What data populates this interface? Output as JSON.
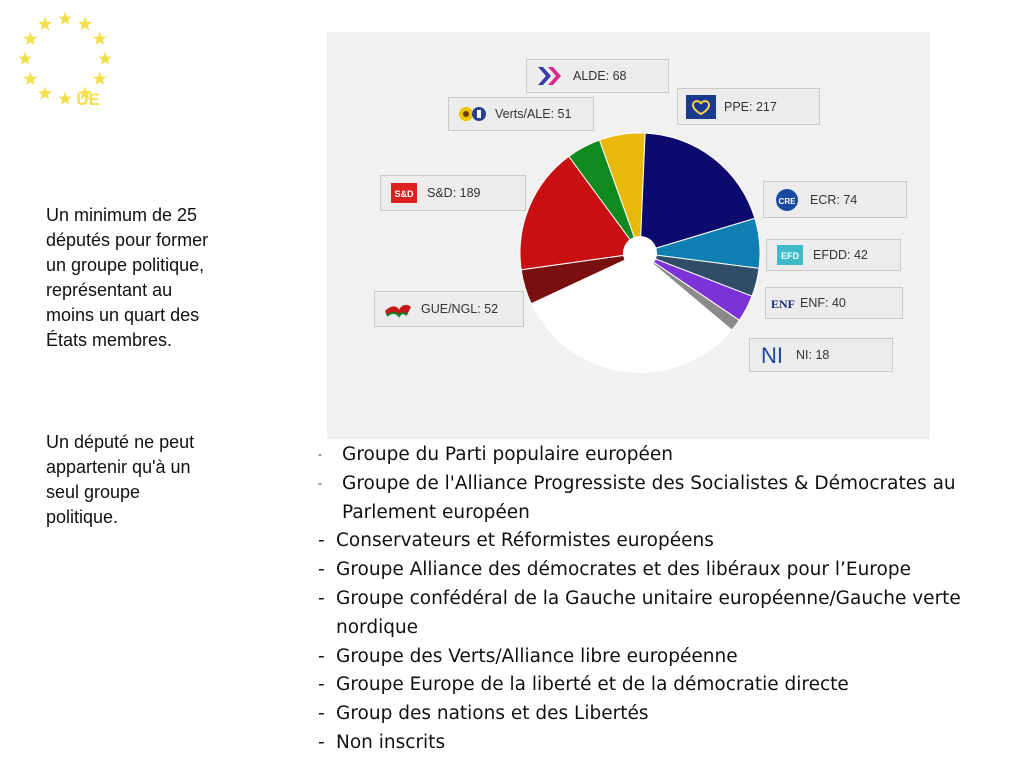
{
  "logo": {
    "text": "UE",
    "star_color": "#f3e04a"
  },
  "side_text": {
    "paragraph_1": "Un minimum de 25 députés pour former un groupe politique, représentant au moins un quart des États membres.",
    "paragraph_2": "Un député ne peut appartenir qu'à un seul groupe politique."
  },
  "chart_data": {
    "type": "pie",
    "variant": "hemicycle",
    "title": "",
    "start_angle_deg": 245,
    "series": [
      {
        "label": "GUE/NGL: 52",
        "value": 52,
        "color": "#7a0f10"
      },
      {
        "label": "S&D: 189",
        "value": 189,
        "color": "#c80f12"
      },
      {
        "label": "Verts/ALE: 51",
        "value": 51,
        "color": "#0f8a1f"
      },
      {
        "label": "ALDE: 68",
        "value": 68,
        "color": "#e8b80a"
      },
      {
        "label": "PPE: 217",
        "value": 217,
        "color": "#0c0a6c"
      },
      {
        "label": "ECR: 74",
        "value": 74,
        "color": "#0e7fb0"
      },
      {
        "label": "EFDD: 42",
        "value": 42,
        "color": "#2f4d66"
      },
      {
        "label": "ENF: 40",
        "value": 40,
        "color": "#7b32d6"
      },
      {
        "label": "NI: 18",
        "value": 18,
        "color": "#8a8a8a"
      }
    ]
  },
  "legend_labels": {
    "alde": "ALDE: 68",
    "verts": "Verts/ALE: 51",
    "ppe": "PPE: 217",
    "sd": "S&D: 189",
    "ecr": "ECR: 74",
    "efdd": "EFDD: 42",
    "gue": "GUE/NGL: 52",
    "enf": "ENF: 40",
    "ni": "NI: 18"
  },
  "logos": {
    "sd_text": "S&D",
    "ecr_text": "CRE",
    "efdd_text": "EFD",
    "enf_text": "ENF",
    "ni_text": "NI"
  },
  "party_list": [
    {
      "dash": "-",
      "text": "Groupe du Parti populaire européen"
    },
    {
      "dash": "-",
      "text": "Groupe de l'Alliance Progressiste des Socialistes & Démocrates au Parlement européen"
    },
    {
      "dash": "-",
      "text": "Conservateurs et Réformistes européens"
    },
    {
      "dash": "-",
      "text": "Groupe Alliance des démocrates et des libéraux pour l’Europe"
    },
    {
      "dash": "-",
      "text": "Groupe confédéral de la Gauche unitaire européenne/Gauche verte nordique"
    },
    {
      "dash": "-",
      "text": "Groupe des Verts/Alliance libre européenne"
    },
    {
      "dash": "-",
      "text": "Groupe Europe de la liberté et de la démocratie directe"
    },
    {
      "dash": "-",
      "text": "Group des nations et des Libertés"
    },
    {
      "dash": "-",
      "text": "Non inscrits"
    }
  ]
}
